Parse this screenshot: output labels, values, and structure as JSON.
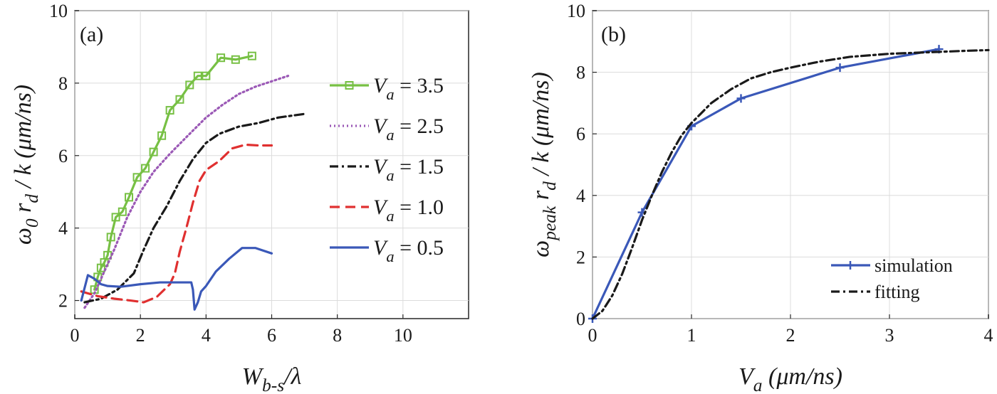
{
  "chart_data": [
    {
      "type": "line",
      "panel_label": "(a)",
      "xlabel": "W_{b-s}/λ",
      "ylabel": "ω_0 r_d / k (μm/ns)",
      "xlim": [
        0,
        12
      ],
      "ylim": [
        1.5,
        10
      ],
      "xticks": [
        0,
        2,
        4,
        6,
        8,
        10
      ],
      "yticks": [
        2,
        4,
        6,
        8,
        10
      ],
      "grid": true,
      "legend_position": "right",
      "series": [
        {
          "name": "V_a = 3.5",
          "color": "#77c044",
          "style": "solid-square-markers",
          "x": [
            0.6,
            0.7,
            0.8,
            0.9,
            1.0,
            1.1,
            1.25,
            1.45,
            1.65,
            1.9,
            2.15,
            2.4,
            2.65,
            2.9,
            3.2,
            3.5,
            3.75,
            4.0,
            4.45,
            4.9,
            5.4
          ],
          "y": [
            2.3,
            2.65,
            2.9,
            3.05,
            3.25,
            3.75,
            4.3,
            4.45,
            4.85,
            5.4,
            5.65,
            6.1,
            6.55,
            7.25,
            7.55,
            7.95,
            8.2,
            8.2,
            8.7,
            8.65,
            8.75
          ]
        },
        {
          "name": "V_a = 2.5",
          "color": "#9b59b6",
          "style": "dotted",
          "x": [
            0.3,
            0.6,
            0.9,
            1.2,
            1.6,
            2.0,
            2.4,
            2.9,
            3.5,
            4.0,
            4.5,
            5.0,
            5.5,
            6.0,
            6.5
          ],
          "y": [
            1.8,
            2.2,
            2.8,
            3.4,
            4.3,
            5.0,
            5.55,
            6.05,
            6.6,
            7.05,
            7.4,
            7.7,
            7.9,
            8.05,
            8.2
          ]
        },
        {
          "name": "V_a = 1.5",
          "color": "#1a1a1a",
          "style": "dash-dot",
          "x": [
            0.3,
            0.8,
            1.3,
            1.8,
            2.1,
            2.4,
            2.8,
            3.2,
            3.6,
            4.0,
            4.4,
            5.0,
            5.6,
            6.2,
            7.0
          ],
          "y": [
            1.95,
            2.05,
            2.3,
            2.75,
            3.4,
            4.0,
            4.6,
            5.3,
            5.9,
            6.35,
            6.6,
            6.8,
            6.9,
            7.05,
            7.15
          ]
        },
        {
          "name": "V_a = 1.0",
          "color": "#e03030",
          "style": "dashed",
          "x": [
            0.2,
            0.7,
            1.2,
            1.7,
            2.1,
            2.5,
            2.9,
            3.05,
            3.2,
            3.4,
            3.6,
            3.8,
            4.0,
            4.4,
            4.8,
            5.2,
            5.6,
            6.0
          ],
          "y": [
            2.25,
            2.12,
            2.05,
            2.0,
            1.95,
            2.1,
            2.45,
            2.75,
            3.35,
            4.0,
            4.7,
            5.3,
            5.6,
            5.85,
            6.2,
            6.3,
            6.28,
            6.28
          ]
        },
        {
          "name": "V_a = 0.5",
          "color": "#3a58b8",
          "style": "solid",
          "x": [
            0.2,
            0.4,
            0.6,
            0.8,
            1.0,
            1.4,
            2.0,
            2.6,
            3.2,
            3.55,
            3.6,
            3.65,
            3.75,
            3.85,
            4.0,
            4.3,
            4.7,
            5.1,
            5.5,
            6.0
          ],
          "y": [
            2.0,
            2.7,
            2.6,
            2.45,
            2.4,
            2.38,
            2.45,
            2.5,
            2.5,
            2.5,
            2.3,
            1.75,
            1.95,
            2.25,
            2.4,
            2.8,
            3.15,
            3.45,
            3.45,
            3.3
          ]
        }
      ]
    },
    {
      "type": "line",
      "panel_label": "(b)",
      "xlabel": "V_a (μm/ns)",
      "ylabel": "ω_peak r_d / k (μm/ns)",
      "xlim": [
        0,
        4
      ],
      "ylim": [
        0,
        10
      ],
      "xticks": [
        0,
        1,
        2,
        3,
        4
      ],
      "yticks": [
        0,
        2,
        4,
        6,
        8,
        10
      ],
      "grid": true,
      "legend_position": "bottom-right",
      "series": [
        {
          "name": "simulation",
          "color": "#3a58b8",
          "style": "solid-plus-markers",
          "x": [
            0,
            0.5,
            1.0,
            1.5,
            2.5,
            3.5
          ],
          "y": [
            0,
            3.45,
            6.25,
            7.15,
            8.15,
            8.75
          ]
        },
        {
          "name": "fitting",
          "color": "#1a1a1a",
          "style": "dash-dot",
          "x": [
            0,
            0.1,
            0.2,
            0.3,
            0.4,
            0.5,
            0.6,
            0.7,
            0.8,
            0.9,
            1.0,
            1.2,
            1.4,
            1.6,
            1.8,
            2.0,
            2.3,
            2.6,
            3.0,
            3.4,
            3.8,
            4.0
          ],
          "y": [
            0,
            0.25,
            0.75,
            1.45,
            2.3,
            3.2,
            4.0,
            4.75,
            5.4,
            5.95,
            6.35,
            7.0,
            7.45,
            7.8,
            8.0,
            8.15,
            8.35,
            8.5,
            8.6,
            8.65,
            8.7,
            8.72
          ]
        }
      ]
    }
  ]
}
